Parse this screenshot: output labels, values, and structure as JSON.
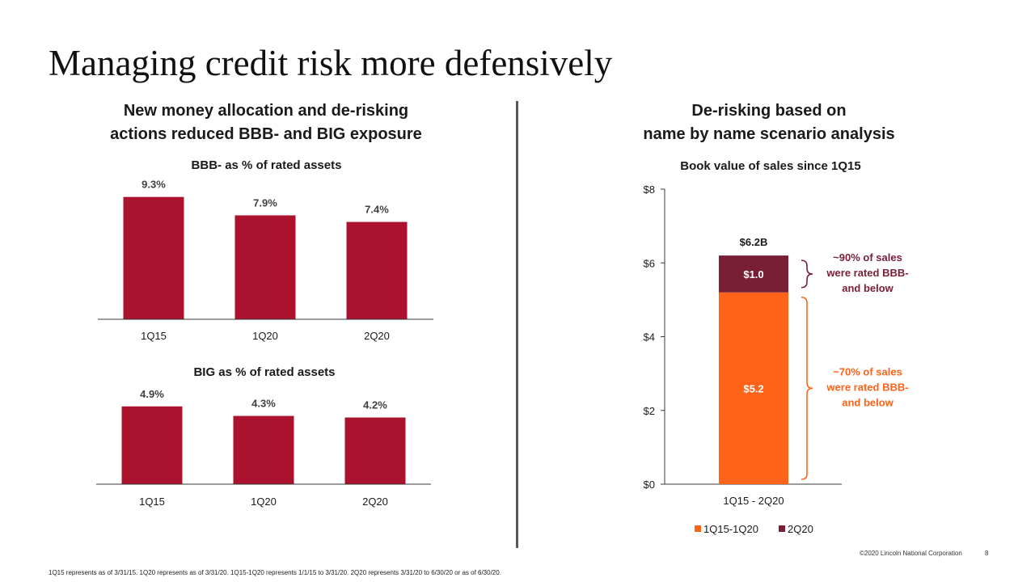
{
  "slide": {
    "title": "Managing credit risk more defensively",
    "left_heading": [
      "New money allocation and de-risking",
      "actions reduced BBB- and BIG exposure"
    ],
    "right_heading": [
      "De-risking based on",
      "name by name scenario analysis"
    ],
    "footnote": "1Q15 represents as of 3/31/15. 1Q20 represents as of 3/31/20. 1Q15-1Q20 represents 1/1/15 to 3/31/20. 2Q20 represents 3/31/20 to 6/30/20 or as of 6/30/20.",
    "copyright": "©2020 Lincoln National Corporation",
    "page_number": "8"
  },
  "colors": {
    "bar_red": "#AB122D",
    "dark_red": "#781F36",
    "orange": "#FF6319"
  },
  "chart_data": [
    {
      "type": "bar",
      "title": "BBB- as % of rated assets",
      "categories": [
        "1Q15",
        "1Q20",
        "2Q20"
      ],
      "values": [
        9.3,
        7.9,
        7.4
      ],
      "labels": [
        "9.3%",
        "7.9%",
        "7.4%"
      ],
      "ylim": [
        0,
        10.2
      ],
      "grid": false,
      "legend": "none"
    },
    {
      "type": "bar",
      "title": "BIG as % of rated assets",
      "categories": [
        "1Q15",
        "1Q20",
        "2Q20"
      ],
      "values": [
        4.9,
        4.3,
        4.2
      ],
      "labels": [
        "4.9%",
        "4.3%",
        "4.2%"
      ],
      "ylim": [
        0,
        5.6
      ],
      "grid": false,
      "legend": "none"
    },
    {
      "type": "bar",
      "stacked": true,
      "title": "Book value of sales since 1Q15",
      "categories": [
        "1Q15 - 2Q20"
      ],
      "series": [
        {
          "name": "1Q15-1Q20",
          "values": [
            5.2
          ],
          "label": "$5.2",
          "color": "#FF6319"
        },
        {
          "name": "2Q20",
          "values": [
            1.0
          ],
          "label": "$1.0",
          "color": "#781F36"
        }
      ],
      "total_label": "$6.2B",
      "ylim": [
        0,
        8
      ],
      "yticks": [
        0,
        2,
        4,
        6,
        8
      ],
      "ytick_labels": [
        "$0",
        "$2",
        "$4",
        "$6",
        "$8"
      ],
      "grid": false,
      "legend": "bottom",
      "annotations": [
        {
          "series": "2Q20",
          "text": [
            "~90% of sales",
            "were rated BBB-",
            "and below"
          ],
          "color": "#781F36"
        },
        {
          "series": "1Q15-1Q20",
          "text": [
            "~70% of sales",
            "were rated BBB-",
            "and below"
          ],
          "color": "#FF6319"
        }
      ]
    }
  ]
}
